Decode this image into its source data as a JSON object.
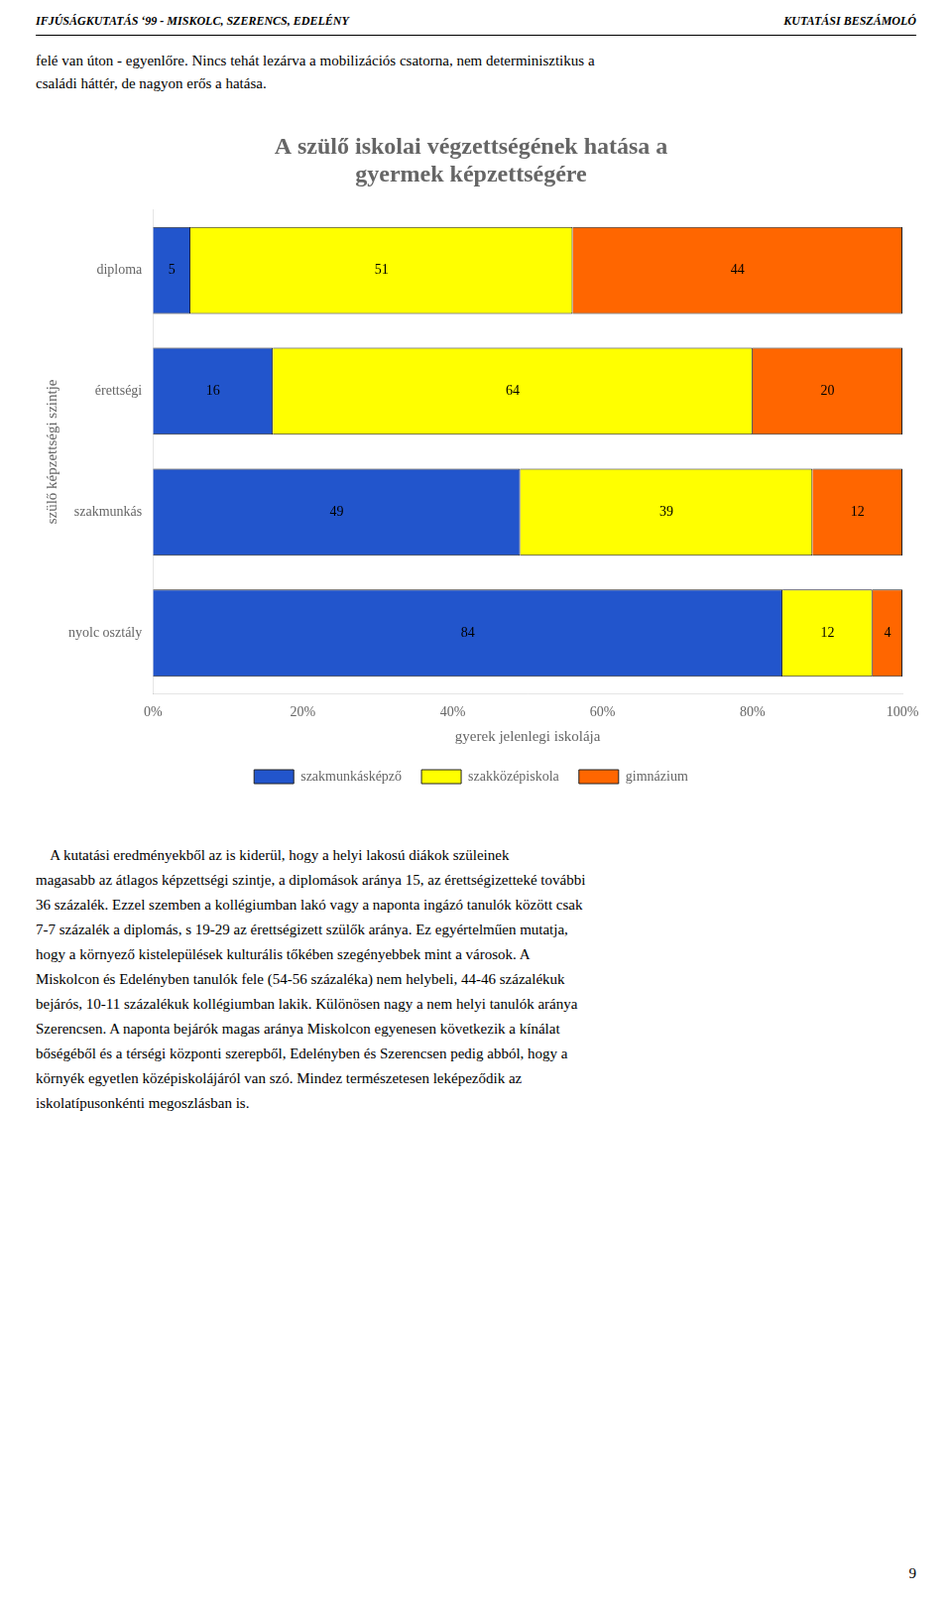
{
  "chart_data": {
    "type": "bar",
    "orientation": "horizontal",
    "stacked": true,
    "title": [
      "A szülő iskolai végzettségének hatása a",
      "gyermek képzettségére"
    ],
    "header": [
      "IFJÚSÁGKUTATÁS ‘99 - MISKOLC, SZERENCS, EDELÉNY",
      "KUTATÁSI BESZÁMOLÓ"
    ],
    "intro": [
      "felé van úton - egyenlőre. Nincs tehát lezárva a mobilizációs csatorna, nem determinisztikus a",
      "családi háttér, de nagyon erős a hatása."
    ],
    "body": [
      "    A kutatási eredményekből az is kiderül, hogy a helyi lakosú diákok szüleinek",
      "magasabb az átlagos képzettségi szintje, a diplomások aránya 15, az érettségizetteké további",
      "36 százalék. Ezzel szemben a kollégiumban lakó vagy a naponta ingázó tanulók között csak",
      "7-7 százalék a diplomás, s 19-29 az érettségizett szülők aránya. Ez egyértelműen mutatja,",
      "hogy a környező kistelepülések kulturális tőkében szegényebbek mint a városok. A",
      "Miskolcon és Edelényben tanulók fele (54-56 százaléka) nem helybeli, 44-46 százalékuk",
      "bejárós, 10-11 százalékuk kollégiumban lakik. Különösen nagy a nem helyi tanulók aránya",
      "Szerencsen. A naponta bejárók magas aránya Miskolcon egyenesen következik a kínálat",
      "bőségéből és a térségi központi szerepből, Edelényben és Szerencsen pedig abból, hogy a",
      "környék egyetlen középiskolájáról van szó. Mindez természetesen leképeződik az",
      "iskolatípusonkénti megoszlásban is."
    ],
    "page_number": "9",
    "xlabel": "gyerek jelenlegi iskolája",
    "ylabel": "szülő képzettségi szintje",
    "categories": [
      "diploma",
      "érettségi",
      "szakmunkás",
      "nyolc osztály"
    ],
    "series": [
      {
        "name": "szakmunkásképző",
        "color": "#2255cc",
        "values": [
          5,
          16,
          49,
          84
        ]
      },
      {
        "name": "szakközépiskola",
        "color": "#ffff00",
        "values": [
          51,
          64,
          39,
          12
        ]
      },
      {
        "name": "gimnázium",
        "color": "#ff6600",
        "values": [
          44,
          20,
          12,
          4
        ]
      }
    ],
    "xlim": [
      0,
      100
    ],
    "xticks": [
      {
        "value": 0,
        "label": "0%"
      },
      {
        "value": 20,
        "label": "20%"
      },
      {
        "value": 40,
        "label": "40%"
      },
      {
        "value": 60,
        "label": "60%"
      },
      {
        "value": 80,
        "label": "80%"
      },
      {
        "value": 100,
        "label": "100%"
      }
    ],
    "data_labels": true,
    "legend": "bottom",
    "grid": false
  }
}
